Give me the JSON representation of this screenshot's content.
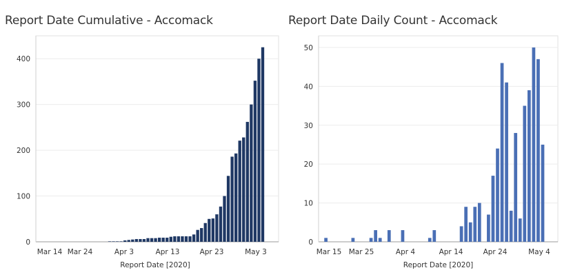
{
  "chart_data": [
    {
      "type": "bar",
      "title": "Report Date Cumulative - Accomack",
      "xlabel": "Report Date [2020]",
      "ylabel": "",
      "ylim": [
        0,
        450
      ],
      "yticks": [
        0,
        100,
        200,
        300,
        400
      ],
      "xtick_labels": [
        "Mar 14",
        "Mar 24",
        "Apr 3",
        "Apr 13",
        "Apr 23",
        "May 3"
      ],
      "grid": "horizontal",
      "color": "#1f3864",
      "data_labels": [
        {
          "index": 64,
          "text": "425"
        }
      ],
      "x_start_index": 0,
      "values": [
        0,
        0,
        0,
        0,
        0,
        0,
        0,
        0,
        0,
        0,
        0,
        0,
        0,
        0,
        0,
        0,
        0,
        0,
        1,
        1,
        1,
        1,
        3,
        4,
        5,
        6,
        6,
        6,
        8,
        8,
        8,
        9,
        9,
        9,
        11,
        12,
        12,
        12,
        12,
        12,
        16,
        26,
        30,
        41,
        50,
        51,
        60,
        77,
        100,
        144,
        186,
        193,
        221,
        228,
        262,
        300,
        352,
        400,
        425
      ]
    },
    {
      "type": "bar",
      "title": "Report Date Daily Count - Accomack",
      "xlabel": "Report Date [2020]",
      "ylabel": "",
      "ylim": [
        0,
        53
      ],
      "yticks": [
        0,
        10,
        20,
        30,
        40,
        50
      ],
      "xtick_labels": [
        "Mar 15",
        "Mar 25",
        "Apr 4",
        "Apr 14",
        "Apr 24",
        "May 4"
      ],
      "grid": "horizontal",
      "color": "#4a6fb5",
      "data_labels": [
        {
          "index": 50,
          "text": "50"
        }
      ],
      "values": [
        1,
        0,
        0,
        0,
        0,
        0,
        1,
        0,
        0,
        0,
        1,
        3,
        1,
        0,
        3,
        0,
        0,
        3,
        0,
        0,
        0,
        0,
        0,
        1,
        3,
        0,
        0,
        0,
        0,
        0,
        4,
        9,
        5,
        9,
        10,
        0,
        7,
        17,
        24,
        46,
        41,
        8,
        28,
        6,
        35,
        39,
        50,
        47,
        25
      ]
    }
  ]
}
